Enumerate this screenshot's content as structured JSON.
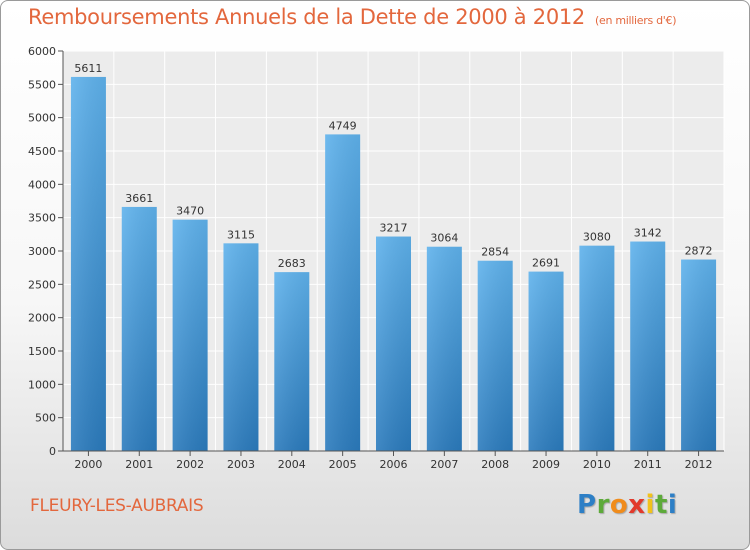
{
  "page": {
    "title": "Remboursements Annuels de la Dette de 2000 à 2012",
    "subtitle": "(en milliers d'€)",
    "city": "FLEURY-LES-AUBRAIS",
    "logo": "Proxiti"
  },
  "chart_data": {
    "type": "bar",
    "title": "Remboursements Annuels de la Dette de 2000 à 2012",
    "subtitle": "(en milliers d'€)",
    "categories": [
      "2000",
      "2001",
      "2002",
      "2003",
      "2004",
      "2005",
      "2006",
      "2007",
      "2008",
      "2009",
      "2010",
      "2011",
      "2012"
    ],
    "values": [
      5611,
      3661,
      3470,
      3115,
      2683,
      4749,
      3217,
      3064,
      2854,
      2691,
      3080,
      3142,
      2872
    ],
    "ylim": [
      0,
      6000
    ],
    "yticks": [
      0,
      500,
      1000,
      1500,
      2000,
      2500,
      3000,
      3500,
      4000,
      4500,
      5000,
      5500,
      6000
    ],
    "xlabel": "",
    "ylabel": "",
    "grid": true,
    "bar_color": "#3a8fd4",
    "legend": "none"
  }
}
